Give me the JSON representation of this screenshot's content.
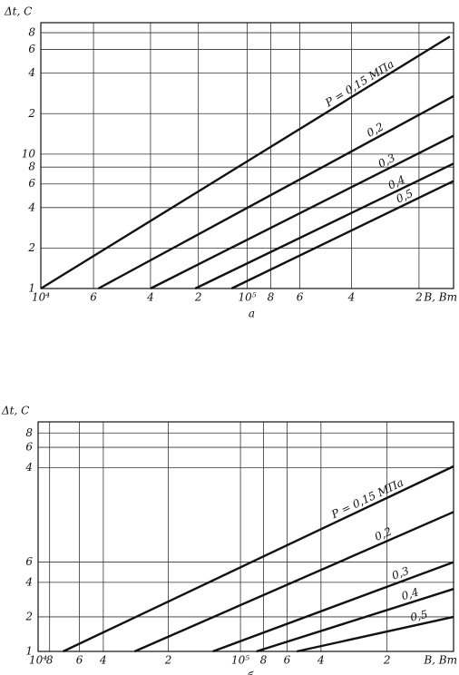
{
  "chart_data": [
    {
      "type": "line",
      "y_label": "Δt, C",
      "x_label": "B, Вт",
      "subtitle": "а",
      "log_x": true,
      "log_y": true,
      "grid": true,
      "xlim": [
        10000,
        1000000
      ],
      "ylim": [
        1,
        95
      ],
      "xticks": [
        {
          "value": 10000,
          "label": "10⁴"
        },
        {
          "value": 18000,
          "label": "6"
        },
        {
          "value": 34000,
          "label": "4"
        },
        {
          "value": 58000,
          "label": "2"
        },
        {
          "value": 100000,
          "label": "10⁵"
        },
        {
          "value": 130000,
          "label": "8"
        },
        {
          "value": 180000,
          "label": "6"
        },
        {
          "value": 320000,
          "label": "4"
        },
        {
          "value": 680000,
          "label": "2"
        }
      ],
      "yticks": [
        1,
        2,
        4,
        6,
        8,
        10,
        {
          "value": 20,
          "label": "2"
        },
        {
          "value": 40,
          "label": "4"
        },
        {
          "value": 60,
          "label": "6"
        },
        {
          "value": 80,
          "label": "8"
        }
      ],
      "series": [
        {
          "name": "P = 0,15 МПа",
          "color": "#111",
          "x": [
            10000,
            960000
          ],
          "values": [
            1,
            75
          ]
        },
        {
          "name": "0,2",
          "color": "#111",
          "x": [
            19000,
            1000000
          ],
          "values": [
            1,
            27
          ]
        },
        {
          "name": "0,3",
          "color": "#111",
          "x": [
            34000,
            1000000
          ],
          "values": [
            1,
            13.7
          ]
        },
        {
          "name": "0,4",
          "color": "#111",
          "x": [
            56000,
            1000000
          ],
          "values": [
            1,
            8.5
          ]
        },
        {
          "name": "0,5",
          "color": "#111",
          "x": [
            84000,
            1000000
          ],
          "values": [
            1,
            6.3
          ]
        }
      ]
    },
    {
      "type": "line",
      "y_label": "Δt, C",
      "x_label": "B, Вт",
      "subtitle": "б",
      "log_x": true,
      "log_y": true,
      "grid": true,
      "xlim": [
        10000,
        1130000
      ],
      "ylim": [
        1,
        100
      ],
      "xticks": [
        {
          "value": 10000,
          "label": "10⁴"
        },
        {
          "value": 11400,
          "label": "8"
        },
        {
          "value": 16000,
          "label": "6"
        },
        {
          "value": 21000,
          "label": "4"
        },
        {
          "value": 44000,
          "label": "2"
        },
        {
          "value": 100000,
          "label": "10⁵"
        },
        {
          "value": 130000,
          "label": "8"
        },
        {
          "value": 170000,
          "label": "6"
        },
        {
          "value": 250000,
          "label": "4"
        },
        {
          "value": 530000,
          "label": "2"
        }
      ],
      "yticks": [
        1,
        2,
        4,
        6,
        {
          "value": 40,
          "label": "4"
        },
        {
          "value": 60,
          "label": "6"
        },
        {
          "value": 80,
          "label": "8"
        }
      ],
      "series": [
        {
          "name": "P = 0,15 МПа",
          "color": "#111",
          "x": [
            13300,
            1130000
          ],
          "values": [
            1,
            41
          ]
        },
        {
          "name": "0,2",
          "color": "#111",
          "x": [
            30000,
            1130000
          ],
          "values": [
            1,
            16.4
          ]
        },
        {
          "name": "0,3",
          "color": "#111",
          "x": [
            73000,
            1130000
          ],
          "values": [
            1,
            6
          ]
        },
        {
          "name": "0,4",
          "color": "#111",
          "x": [
            120000,
            1130000
          ],
          "values": [
            1,
            3.5
          ]
        },
        {
          "name": "0,5",
          "color": "#111",
          "x": [
            190000,
            1130000
          ],
          "values": [
            1,
            2.0
          ]
        }
      ]
    }
  ]
}
